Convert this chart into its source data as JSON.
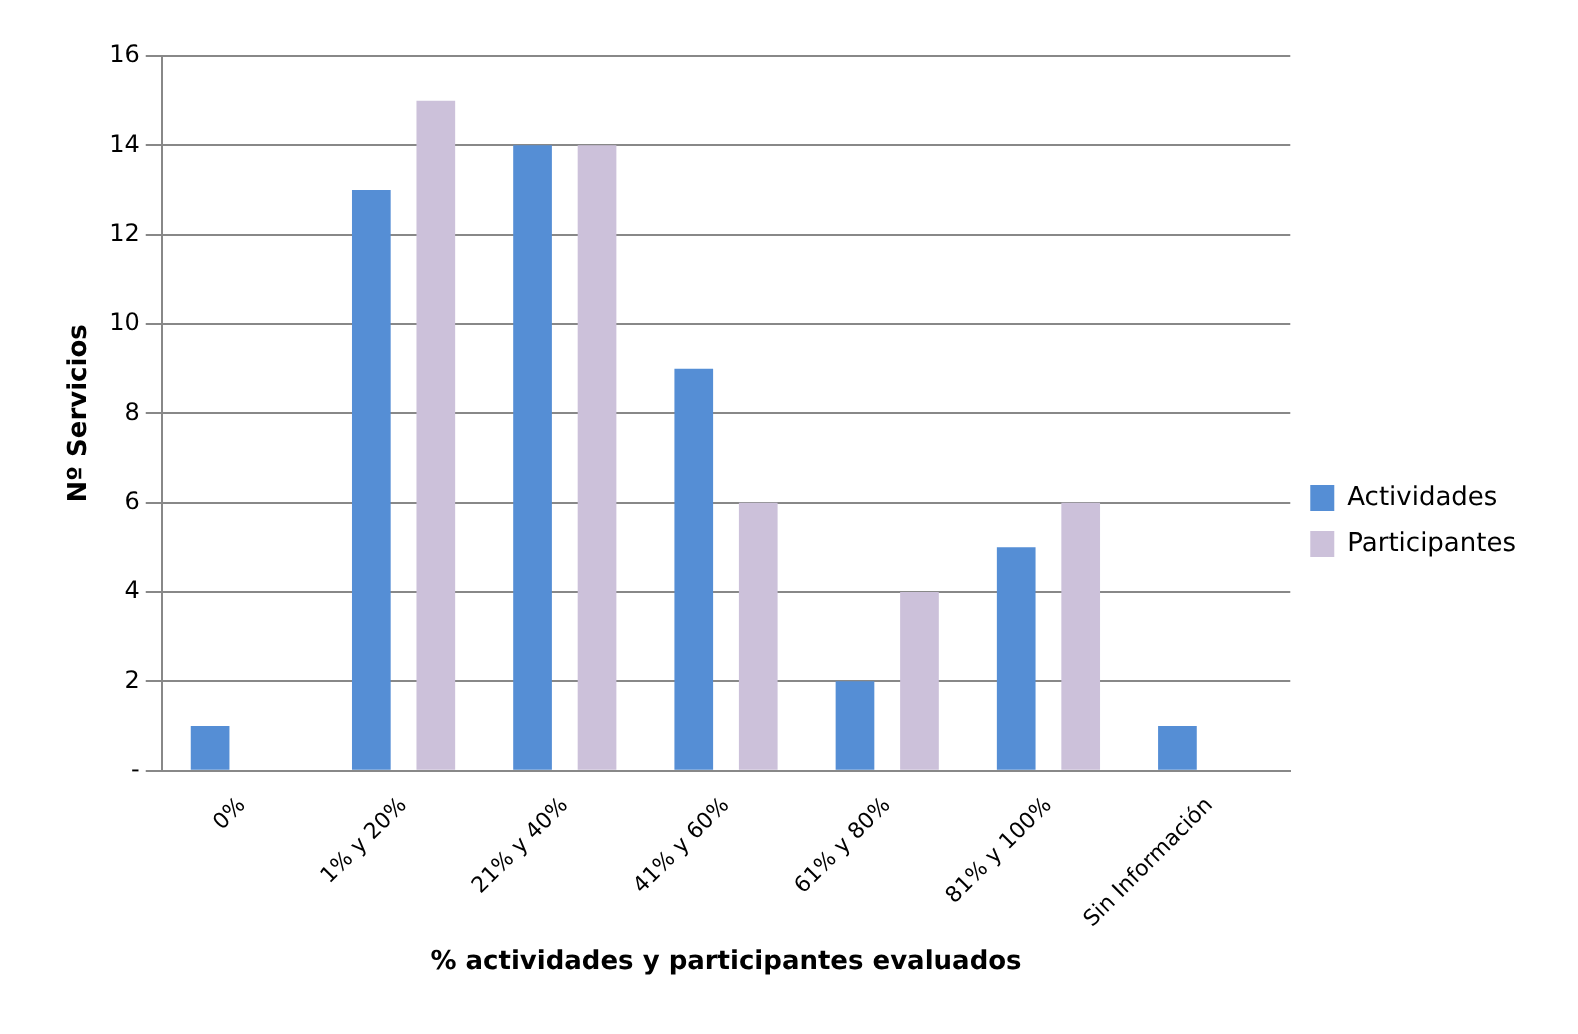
{
  "chart_data": {
    "type": "bar",
    "xlabel": "% actividades y participantes evaluados",
    "ylabel": "Nº Servicios",
    "categories": [
      "0%",
      "1% y 20%",
      "21% y 40%",
      "41% y 60%",
      "61% y 80%",
      "81% y 100%",
      "Sin Información"
    ],
    "series": [
      {
        "name": "Actividades",
        "color": "#558ed5",
        "values": [
          1,
          13,
          14,
          9,
          2,
          5,
          1
        ]
      },
      {
        "name": "Participantes",
        "color": "#ccc1da",
        "values": [
          0,
          15,
          14,
          6,
          4,
          6,
          0
        ]
      }
    ],
    "ylim": [
      0,
      16
    ],
    "yticks": [
      {
        "value": 0,
        "label": "-"
      },
      2,
      4,
      6,
      8,
      10,
      12,
      14,
      16
    ],
    "grid": "y",
    "legend": "right"
  }
}
